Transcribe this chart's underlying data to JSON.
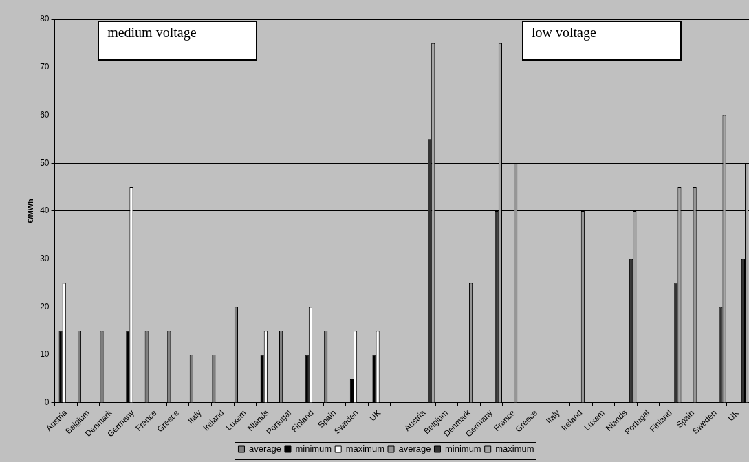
{
  "chart_data": {
    "type": "bar",
    "ylabel": "€/MWh",
    "annotations": [
      "medium voltage",
      "low voltage"
    ],
    "categories": [
      "Austria",
      "Belgium",
      "Denmark",
      "Germany",
      "France",
      "Greece",
      "Italy",
      "Ireland",
      "Luxem",
      "Nlands",
      "Portugal",
      "Finland",
      "Spain",
      "Sweden",
      "UK",
      null,
      "Austria",
      "Belgium",
      "Denmark",
      "Germany",
      "France",
      "Greece",
      "Italy",
      "Ireland",
      "Luxem",
      "Nlands",
      "Portugal",
      "Finland",
      "Spain",
      "Sweden",
      "UK"
    ],
    "series": [
      {
        "name": "average",
        "color": "#7f7f7f",
        "values": [
          null,
          15,
          15,
          null,
          15,
          15,
          10,
          10,
          20,
          null,
          15,
          null,
          15,
          null,
          null,
          null,
          null,
          null,
          null,
          null,
          null,
          null,
          null,
          null,
          null,
          null,
          null,
          null,
          null,
          null,
          null
        ]
      },
      {
        "name": "minimum",
        "color": "#000000",
        "values": [
          15,
          null,
          null,
          15,
          null,
          null,
          null,
          null,
          null,
          10,
          null,
          10,
          null,
          5,
          10,
          null,
          null,
          null,
          null,
          null,
          null,
          null,
          null,
          null,
          null,
          null,
          null,
          null,
          null,
          null,
          null
        ]
      },
      {
        "name": "maximum",
        "color": "#ffffff",
        "values": [
          25,
          null,
          null,
          45,
          null,
          null,
          null,
          null,
          null,
          15,
          null,
          20,
          null,
          15,
          15,
          null,
          null,
          null,
          null,
          null,
          null,
          null,
          null,
          null,
          null,
          null,
          null,
          null,
          null,
          null,
          null
        ]
      },
      {
        "name": "average",
        "color": "#969696",
        "values": [
          null,
          null,
          null,
          null,
          null,
          null,
          null,
          null,
          null,
          null,
          null,
          null,
          null,
          null,
          null,
          null,
          null,
          null,
          25,
          null,
          50,
          null,
          null,
          40,
          null,
          null,
          null,
          null,
          45,
          null,
          null
        ]
      },
      {
        "name": "minimum",
        "color": "#333333",
        "values": [
          null,
          null,
          null,
          null,
          null,
          null,
          null,
          null,
          null,
          null,
          null,
          null,
          null,
          null,
          null,
          null,
          55,
          null,
          null,
          40,
          null,
          null,
          null,
          null,
          null,
          30,
          null,
          25,
          null,
          20,
          30
        ]
      },
      {
        "name": "maximum",
        "color": "#a6a6a6",
        "values": [
          null,
          null,
          null,
          null,
          null,
          null,
          null,
          null,
          null,
          null,
          null,
          null,
          null,
          null,
          null,
          null,
          75,
          null,
          null,
          75,
          null,
          null,
          null,
          null,
          null,
          40,
          null,
          45,
          null,
          60,
          50
        ]
      }
    ],
    "ylim": [
      0,
      80
    ],
    "yticks": [
      0,
      10,
      20,
      30,
      40,
      50,
      60,
      70,
      80
    ],
    "grid": "y",
    "legend": "bottom"
  }
}
